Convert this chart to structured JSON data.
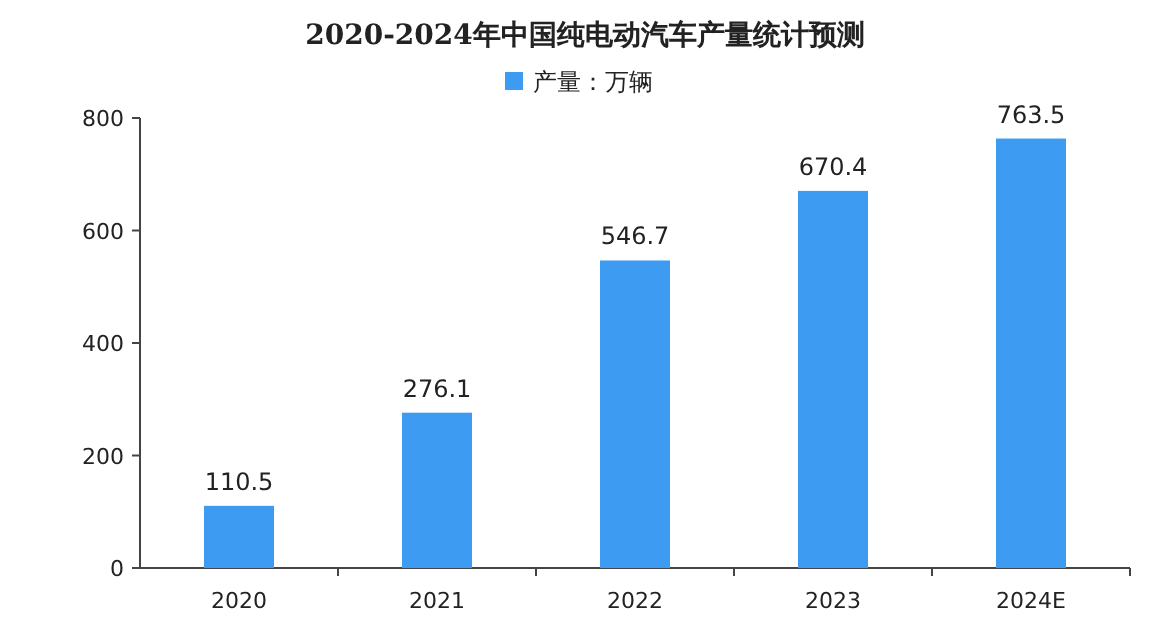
{
  "chart_data": {
    "type": "bar",
    "title": "2020-2024年中国纯电动汽车产量统计预测",
    "categories": [
      "2020",
      "2021",
      "2022",
      "2023",
      "2024E"
    ],
    "series": [
      {
        "name": "产量：万辆",
        "color": "#3d9cf2",
        "values": [
          110.5,
          276.1,
          546.7,
          670.4,
          763.5
        ]
      }
    ],
    "ylim": [
      0,
      800
    ],
    "yticks": [
      0,
      200,
      400,
      600,
      800
    ],
    "data_labels": true,
    "legend": "top",
    "grid": false
  }
}
